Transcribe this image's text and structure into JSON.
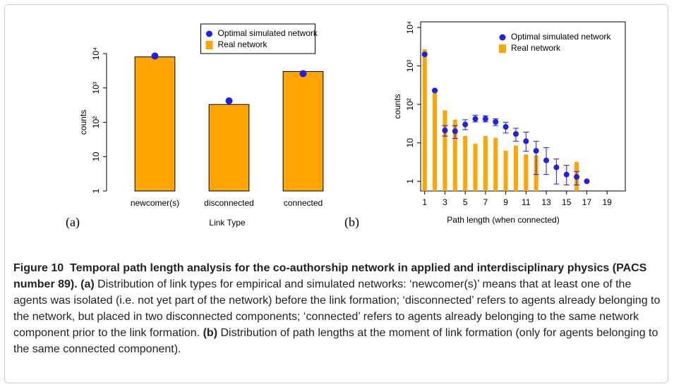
{
  "chart_data": [
    {
      "type": "bar",
      "panel_label": "(a)",
      "x_label": "Link Type",
      "y_label": "counts",
      "categories": [
        "newcomer(s)",
        "disconnected",
        "connected"
      ],
      "log_y": true,
      "ylim": [
        1,
        10000
      ],
      "yticks": [
        1,
        10,
        {
          "value": 100,
          "label": "10²"
        },
        {
          "value": 1000,
          "label": "10³"
        },
        {
          "value": 10000,
          "label": "10⁴"
        }
      ],
      "legend": "top center",
      "legend_frame": true,
      "series": [
        {
          "name": "Optimal simulated network",
          "type": "scatter",
          "color": "#1f1fe6",
          "values": [
            8500,
            420,
            2600
          ],
          "lower": [
            8000,
            370,
            2450
          ],
          "upper": [
            9000,
            460,
            2750
          ]
        },
        {
          "name": "Real network",
          "type": "bar",
          "color": "#ffa500",
          "values": [
            8000,
            330,
            3000
          ]
        }
      ]
    },
    {
      "type": "bar",
      "panel_label": "(b)",
      "x_label": "Path length (when connected)",
      "y_label": "counts",
      "x": [
        1,
        2,
        3,
        4,
        5,
        6,
        7,
        8,
        9,
        10,
        11,
        12,
        13,
        14,
        15,
        16,
        17
      ],
      "xlim": [
        0.6,
        20.8
      ],
      "xticks": [
        1,
        3,
        5,
        7,
        9,
        11,
        13,
        15,
        17,
        19
      ],
      "log_y": true,
      "ylim": [
        0.56,
        14000
      ],
      "yticks": [
        1,
        10,
        {
          "value": 100,
          "label": "10²"
        },
        {
          "value": 1000,
          "label": "10³"
        },
        {
          "value": 10000,
          "label": "10⁴"
        }
      ],
      "legend": "top right",
      "legend_frame": false,
      "series": [
        {
          "name": "Optimal simulated network",
          "type": "scatter",
          "color": "#1f1fe6",
          "values": [
            2000,
            230,
            21,
            20,
            30,
            42,
            42,
            35,
            26,
            17,
            11,
            6.2,
            3.5,
            2.3,
            1.5,
            1.3,
            1.0
          ],
          "lower": [
            1900,
            220,
            15,
            13,
            22,
            35,
            35,
            28,
            18,
            11,
            6,
            1.5,
            1.5,
            0.85,
            0.8,
            0.8,
            null
          ],
          "upper": [
            2100,
            240,
            28,
            28,
            40,
            52,
            50,
            42,
            34,
            24,
            19,
            11,
            7.5,
            3.8,
            2.6,
            1.8,
            null
          ]
        },
        {
          "name": "Real network",
          "type": "bar",
          "color": "#ffa500",
          "values": [
            2700,
            220,
            70,
            40,
            15,
            9.5,
            15,
            13.5,
            6.2,
            8.5,
            5,
            4.7,
            null,
            null,
            null,
            3.2,
            null
          ]
        }
      ]
    }
  ],
  "caption": {
    "label": "Figure 10",
    "title": "Temporal path length analysis for the co-authorship network in applied and interdisciplinary physics (PACS number 89).",
    "parts": [
      {
        "tag": "(a)",
        "text": "Distribution of link types for empirical and simulated networks: ‘newcomer(s)’ means that at least one of the agents was isolated (i.e. not yet part of the network) before the link formation; ‘disconnected’ refers to agents already belonging to the network, but placed in two disconnected components; ‘connected’ refers to agents already belonging to the same network component prior to the link formation."
      },
      {
        "tag": "(b)",
        "text": "Distribution of path lengths at the moment of link formation (only for agents belonging to the same connected component)."
      }
    ]
  }
}
